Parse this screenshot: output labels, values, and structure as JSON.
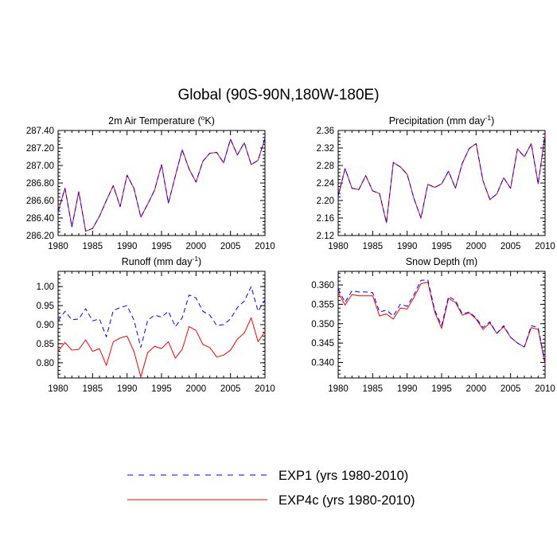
{
  "figure": {
    "title": "Global (90S-90N,180W-180E)"
  },
  "legend": {
    "entries": [
      {
        "label": "EXP1 (yrs 1980-2010)",
        "color": "#0000ff",
        "style": "dashed"
      },
      {
        "label": "EXP4c (yrs 1980-2010)",
        "color": "#ff0000",
        "style": "solid"
      }
    ]
  },
  "chart_data": [
    {
      "type": "line",
      "title": "2m Air Temperature (°K)",
      "title_parts": {
        "pre": "2m Air Temperature (",
        "sup": "o",
        "post": "K)"
      },
      "x": [
        1980,
        1981,
        1982,
        1983,
        1984,
        1985,
        1986,
        1987,
        1988,
        1989,
        1990,
        1991,
        1992,
        1993,
        1994,
        1995,
        1996,
        1997,
        1998,
        1999,
        2000,
        2001,
        2002,
        2003,
        2004,
        2005,
        2006,
        2007,
        2008,
        2009,
        2010
      ],
      "xlim": [
        1980,
        2010
      ],
      "xticks": [
        "1980",
        "1985",
        "1990",
        "1995",
        "2000",
        "2005",
        "2010"
      ],
      "ylim": [
        286.2,
        287.4
      ],
      "yticks": [
        "286.20",
        "286.40",
        "286.60",
        "286.80",
        "287.00",
        "287.20",
        "287.40"
      ],
      "grid": false,
      "series": [
        {
          "name": "EXP1 (yrs 1980-2010)",
          "color": "#0000ff",
          "dash": true,
          "values": [
            286.47,
            286.74,
            286.3,
            286.7,
            286.25,
            286.28,
            286.42,
            286.6,
            286.77,
            286.53,
            286.89,
            286.74,
            286.41,
            286.56,
            286.72,
            287.01,
            286.57,
            286.88,
            287.18,
            286.96,
            286.81,
            287.05,
            287.14,
            287.15,
            287.03,
            287.3,
            287.12,
            287.26,
            287.01,
            287.06,
            287.31
          ]
        },
        {
          "name": "EXP4c (yrs 1980-2010)",
          "color": "#ff0000",
          "dash": false,
          "values": [
            286.47,
            286.74,
            286.3,
            286.7,
            286.25,
            286.28,
            286.42,
            286.6,
            286.77,
            286.53,
            286.89,
            286.74,
            286.41,
            286.56,
            286.72,
            287.01,
            286.57,
            286.88,
            287.18,
            286.96,
            286.81,
            287.05,
            287.14,
            287.15,
            287.03,
            287.3,
            287.12,
            287.26,
            287.01,
            287.06,
            287.31
          ]
        }
      ]
    },
    {
      "type": "line",
      "title": "Precipitation (mm day-1)",
      "title_parts": {
        "pre": "Precipitation (mm day",
        "sup": "-1",
        "post": ")"
      },
      "x": [
        1980,
        1981,
        1982,
        1983,
        1984,
        1985,
        1986,
        1987,
        1988,
        1989,
        1990,
        1991,
        1992,
        1993,
        1994,
        1995,
        1996,
        1997,
        1998,
        1999,
        2000,
        2001,
        2002,
        2003,
        2004,
        2005,
        2006,
        2007,
        2008,
        2009,
        2010
      ],
      "xlim": [
        1980,
        2010
      ],
      "xticks": [
        "1980",
        "1985",
        "1990",
        "1995",
        "2000",
        "2005",
        "2010"
      ],
      "ylim": [
        2.12,
        2.36
      ],
      "yticks": [
        "2.12",
        "2.16",
        "2.20",
        "2.24",
        "2.28",
        "2.32",
        "2.36"
      ],
      "grid": false,
      "series": [
        {
          "name": "EXP1 (yrs 1980-2010)",
          "color": "#0000ff",
          "dash": true,
          "values": [
            2.21,
            2.273,
            2.228,
            2.225,
            2.257,
            2.222,
            2.216,
            2.149,
            2.287,
            2.277,
            2.26,
            2.204,
            2.16,
            2.237,
            2.23,
            2.238,
            2.267,
            2.228,
            2.285,
            2.319,
            2.33,
            2.245,
            2.202,
            2.215,
            2.252,
            2.228,
            2.318,
            2.3,
            2.33,
            2.238,
            2.35
          ]
        },
        {
          "name": "EXP4c (yrs 1980-2010)",
          "color": "#ff0000",
          "dash": false,
          "values": [
            2.21,
            2.273,
            2.228,
            2.225,
            2.257,
            2.222,
            2.216,
            2.149,
            2.287,
            2.277,
            2.26,
            2.204,
            2.16,
            2.237,
            2.23,
            2.238,
            2.267,
            2.228,
            2.285,
            2.319,
            2.33,
            2.245,
            2.202,
            2.215,
            2.252,
            2.228,
            2.318,
            2.3,
            2.33,
            2.238,
            2.35
          ]
        }
      ]
    },
    {
      "type": "line",
      "title": "Runoff (mm day-1)",
      "title_parts": {
        "pre": "Runoff (mm day",
        "sup": "-1",
        "post": ")"
      },
      "x": [
        1980,
        1981,
        1982,
        1983,
        1984,
        1985,
        1986,
        1987,
        1988,
        1989,
        1990,
        1991,
        1992,
        1993,
        1994,
        1995,
        1996,
        1997,
        1998,
        1999,
        2000,
        2001,
        2002,
        2003,
        2004,
        2005,
        2006,
        2007,
        2008,
        2009,
        2010
      ],
      "xlim": [
        1980,
        2010
      ],
      "xticks": [
        "1980",
        "1985",
        "1990",
        "1995",
        "2000",
        "2005",
        "2010"
      ],
      "ylim": [
        0.76,
        1.04
      ],
      "yticks": [
        "0.80",
        "0.85",
        "0.90",
        "0.95",
        "1.00"
      ],
      "ytick_values": [
        0.8,
        0.85,
        0.9,
        0.95,
        1.0
      ],
      "grid": false,
      "series": [
        {
          "name": "EXP1 (yrs 1980-2010)",
          "color": "#0000ff",
          "dash": true,
          "values": [
            0.91,
            0.935,
            0.913,
            0.915,
            0.942,
            0.91,
            0.915,
            0.868,
            0.937,
            0.945,
            0.95,
            0.912,
            0.84,
            0.912,
            0.925,
            0.92,
            0.935,
            0.895,
            0.918,
            0.978,
            0.97,
            0.935,
            0.925,
            0.898,
            0.9,
            0.915,
            0.945,
            0.962,
            1.0,
            0.935,
            0.965
          ]
        },
        {
          "name": "EXP4c (yrs 1980-2010)",
          "color": "#ff0000",
          "dash": false,
          "values": [
            0.83,
            0.853,
            0.833,
            0.835,
            0.86,
            0.83,
            0.837,
            0.793,
            0.855,
            0.865,
            0.87,
            0.83,
            0.763,
            0.827,
            0.843,
            0.837,
            0.855,
            0.812,
            0.835,
            0.895,
            0.885,
            0.848,
            0.84,
            0.815,
            0.82,
            0.833,
            0.862,
            0.878,
            0.918,
            0.855,
            0.882
          ]
        }
      ]
    },
    {
      "type": "line",
      "title": "Snow Depth (m)",
      "title_parts": {
        "pre": "Snow Depth (m)",
        "sup": "",
        "post": ""
      },
      "x": [
        1980,
        1981,
        1982,
        1983,
        1984,
        1985,
        1986,
        1987,
        1988,
        1989,
        1990,
        1991,
        1992,
        1993,
        1994,
        1995,
        1996,
        1997,
        1998,
        1999,
        2000,
        2001,
        2002,
        2003,
        2004,
        2005,
        2006,
        2007,
        2008,
        2009,
        2010
      ],
      "xlim": [
        1980,
        2010
      ],
      "xticks": [
        "1980",
        "1985",
        "1990",
        "1995",
        "2000",
        "2005",
        "2010"
      ],
      "ylim": [
        0.336,
        0.3635
      ],
      "yticks": [
        "0.340",
        "0.345",
        "0.350",
        "0.355",
        "0.360"
      ],
      "ytick_values": [
        0.34,
        0.345,
        0.35,
        0.355,
        0.36
      ],
      "grid": false,
      "series": [
        {
          "name": "EXP1 (yrs 1980-2010)",
          "color": "#0000ff",
          "dash": true,
          "values": [
            0.359,
            0.3555,
            0.3585,
            0.3582,
            0.3582,
            0.358,
            0.353,
            0.3535,
            0.352,
            0.355,
            0.3545,
            0.3575,
            0.3612,
            0.3613,
            0.3535,
            0.3495,
            0.357,
            0.356,
            0.3525,
            0.353,
            0.3515,
            0.349,
            0.3505,
            0.3475,
            0.3495,
            0.3465,
            0.345,
            0.344,
            0.3495,
            0.349,
            0.34
          ]
        },
        {
          "name": "EXP4c (yrs 1980-2010)",
          "color": "#ff0000",
          "dash": false,
          "values": [
            0.358,
            0.3548,
            0.3575,
            0.3572,
            0.3572,
            0.3572,
            0.352,
            0.3525,
            0.3512,
            0.354,
            0.3538,
            0.3568,
            0.3603,
            0.3607,
            0.353,
            0.3488,
            0.3565,
            0.3555,
            0.3522,
            0.3528,
            0.3512,
            0.3485,
            0.3502,
            0.3475,
            0.3492,
            0.3465,
            0.345,
            0.344,
            0.349,
            0.3485,
            0.3395
          ]
        }
      ]
    }
  ]
}
